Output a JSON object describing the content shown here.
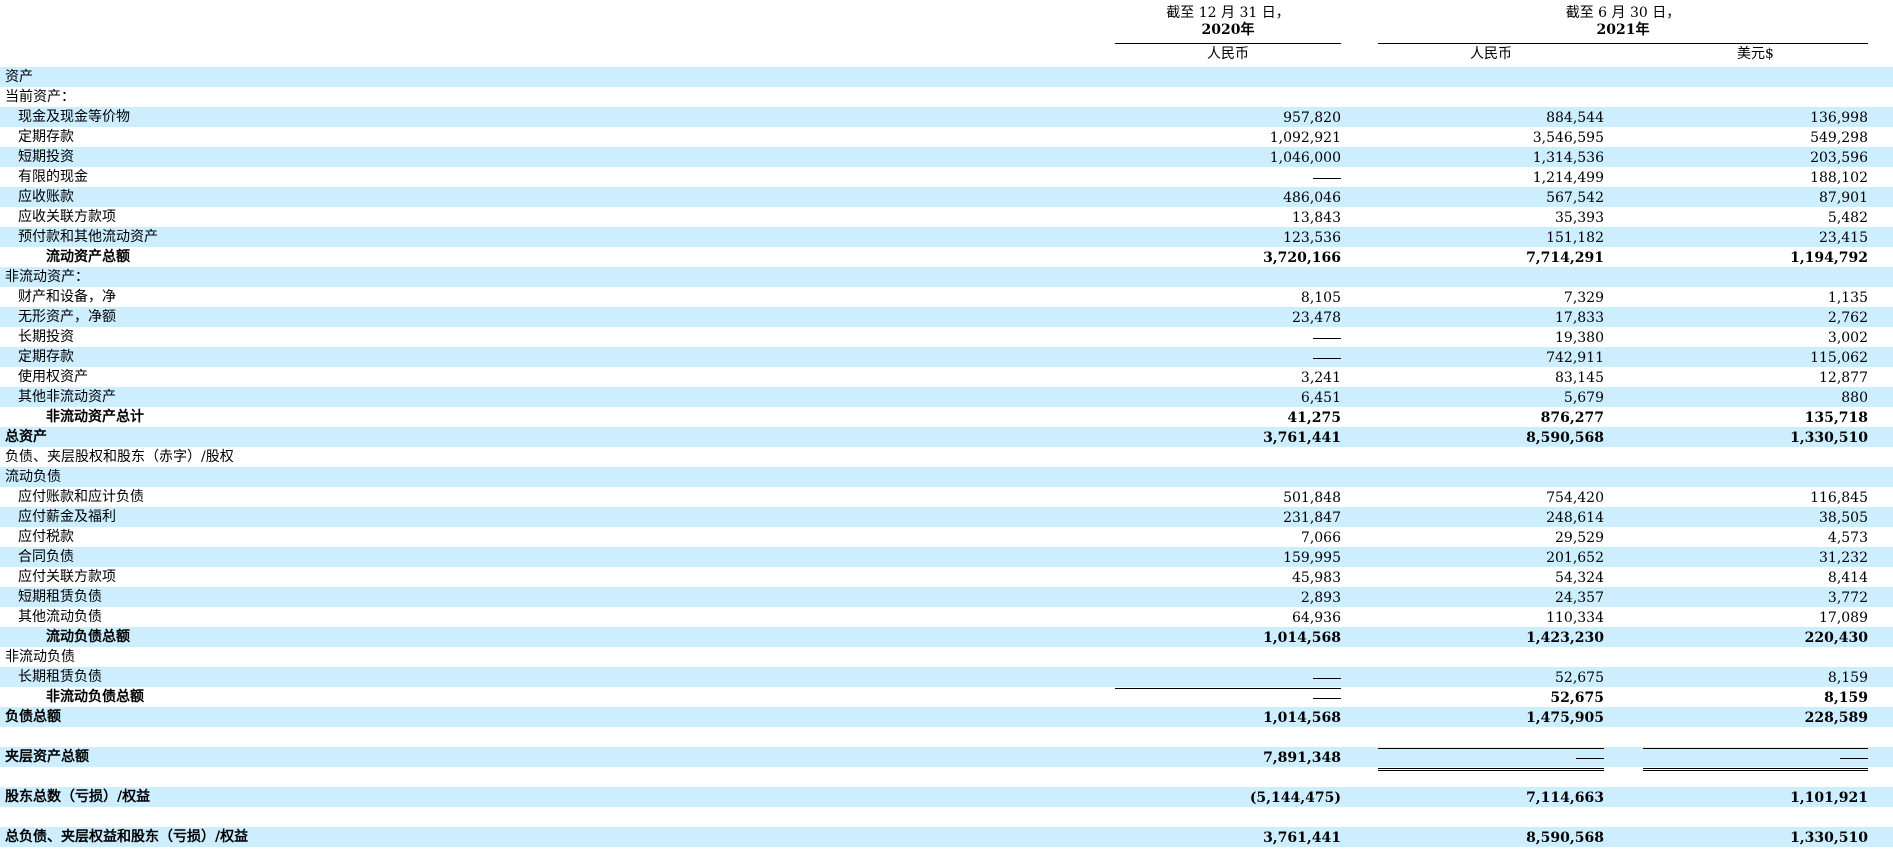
{
  "header": {
    "group1": {
      "line1": "截至 12 月 31 日，",
      "line2": "2020年",
      "currency": "人民币"
    },
    "group2": {
      "line1": "截至 6 月 30 日，",
      "line2": "2021年",
      "currency1": "人民币",
      "currency2": "美元$"
    }
  },
  "rows": [
    {
      "label": "资产",
      "indent": 0,
      "bold": false,
      "shade": true,
      "values": [
        "",
        "",
        ""
      ]
    },
    {
      "label": "当前资产：",
      "indent": 0,
      "bold": false,
      "shade": false,
      "values": [
        "",
        "",
        ""
      ]
    },
    {
      "label": "现金及现金等价物",
      "indent": 1,
      "bold": false,
      "shade": true,
      "values": [
        "957,820",
        "884,544",
        "136,998"
      ]
    },
    {
      "label": "定期存款",
      "indent": 1,
      "bold": false,
      "shade": false,
      "values": [
        "1,092,921",
        "3,546,595",
        "549,298"
      ]
    },
    {
      "label": "短期投资",
      "indent": 1,
      "bold": false,
      "shade": true,
      "values": [
        "1,046,000",
        "1,314,536",
        "203,596"
      ]
    },
    {
      "label": "有限的现金",
      "indent": 1,
      "bold": false,
      "shade": false,
      "values": [
        "—",
        "1,214,499",
        "188,102"
      ]
    },
    {
      "label": "应收账款",
      "indent": 1,
      "bold": false,
      "shade": true,
      "values": [
        "486,046",
        "567,542",
        "87,901"
      ]
    },
    {
      "label": "应收关联方款项",
      "indent": 1,
      "bold": false,
      "shade": false,
      "values": [
        "13,843",
        "35,393",
        "5,482"
      ]
    },
    {
      "label": "预付款和其他流动资产",
      "indent": 1,
      "bold": false,
      "shade": true,
      "values": [
        "123,536",
        "151,182",
        "23,415"
      ]
    },
    {
      "label": "流动资产总额",
      "indent": 2,
      "bold": true,
      "shade": false,
      "total": "single",
      "values": [
        "3,720,166",
        "7,714,291",
        "1,194,792"
      ]
    },
    {
      "label": "非流动资产：",
      "indent": 0,
      "bold": false,
      "shade": true,
      "values": [
        "",
        "",
        ""
      ]
    },
    {
      "label": "财产和设备，净",
      "indent": 1,
      "bold": false,
      "shade": false,
      "values": [
        "8,105",
        "7,329",
        "1,135"
      ]
    },
    {
      "label": "无形资产，净额",
      "indent": 1,
      "bold": false,
      "shade": true,
      "values": [
        "23,478",
        "17,833",
        "2,762"
      ]
    },
    {
      "label": "长期投资",
      "indent": 1,
      "bold": false,
      "shade": false,
      "values": [
        "—",
        "19,380",
        "3,002"
      ]
    },
    {
      "label": "定期存款",
      "indent": 1,
      "bold": false,
      "shade": true,
      "values": [
        "—",
        "742,911",
        "115,062"
      ]
    },
    {
      "label": "使用权资产",
      "indent": 1,
      "bold": false,
      "shade": false,
      "values": [
        "3,241",
        "83,145",
        "12,877"
      ]
    },
    {
      "label": "其他非流动资产",
      "indent": 1,
      "bold": false,
      "shade": true,
      "values": [
        "6,451",
        "5,679",
        "880"
      ]
    },
    {
      "label": "非流动资产总计",
      "indent": 2,
      "bold": true,
      "shade": false,
      "total": "single",
      "values": [
        "41,275",
        "876,277",
        "135,718"
      ]
    },
    {
      "label": "总资产",
      "indent": 0,
      "bold": true,
      "shade": true,
      "total": "double",
      "values": [
        "3,761,441",
        "8,590,568",
        "1,330,510"
      ]
    },
    {
      "label": "负债、夹层股权和股东（赤字）/股权",
      "indent": 0,
      "bold": false,
      "shade": false,
      "values": [
        "",
        "",
        ""
      ]
    },
    {
      "label": "流动负债",
      "indent": 0,
      "bold": false,
      "shade": true,
      "values": [
        "",
        "",
        ""
      ]
    },
    {
      "label": "应付账款和应计负债",
      "indent": 1,
      "bold": false,
      "shade": false,
      "values": [
        "501,848",
        "754,420",
        "116,845"
      ]
    },
    {
      "label": "应付薪金及福利",
      "indent": 1,
      "bold": false,
      "shade": true,
      "values": [
        "231,847",
        "248,614",
        "38,505"
      ]
    },
    {
      "label": "应付税款",
      "indent": 1,
      "bold": false,
      "shade": false,
      "values": [
        "7,066",
        "29,529",
        "4,573"
      ]
    },
    {
      "label": "合同负债",
      "indent": 1,
      "bold": false,
      "shade": true,
      "values": [
        "159,995",
        "201,652",
        "31,232"
      ]
    },
    {
      "label": "应付关联方款项",
      "indent": 1,
      "bold": false,
      "shade": false,
      "values": [
        "45,983",
        "54,324",
        "8,414"
      ]
    },
    {
      "label": "短期租赁负债",
      "indent": 1,
      "bold": false,
      "shade": true,
      "values": [
        "2,893",
        "24,357",
        "3,772"
      ]
    },
    {
      "label": "其他流动负债",
      "indent": 1,
      "bold": false,
      "shade": false,
      "values": [
        "64,936",
        "110,334",
        "17,089"
      ]
    },
    {
      "label": "流动负债总额",
      "indent": 2,
      "bold": true,
      "shade": true,
      "total": "single",
      "values": [
        "1,014,568",
        "1,423,230",
        "220,430"
      ]
    },
    {
      "label": "非流动负债",
      "indent": 0,
      "bold": false,
      "shade": false,
      "values": [
        "",
        "",
        ""
      ]
    },
    {
      "label": "长期租赁负债",
      "indent": 1,
      "bold": false,
      "shade": true,
      "values": [
        "—",
        "52,675",
        "8,159"
      ]
    },
    {
      "label": "非流动负债总额",
      "indent": 2,
      "bold": true,
      "shade": false,
      "total": "single",
      "values": [
        "—",
        "52,675",
        "8,159"
      ]
    },
    {
      "label": "负债总额",
      "indent": 0,
      "bold": true,
      "shade": true,
      "total": "double",
      "values": [
        "1,014,568",
        "1,475,905",
        "228,589"
      ]
    },
    {
      "spacer": true
    },
    {
      "label": "夹层资产总额",
      "indent": 0,
      "bold": true,
      "shade": true,
      "total": "double",
      "values": [
        "7,891,348",
        "—",
        "—"
      ]
    },
    {
      "spacer": true
    },
    {
      "label": "股东总数（亏损）/权益",
      "indent": 0,
      "bold": true,
      "shade": true,
      "total": "double",
      "values": [
        "(5,144,475)",
        "7,114,663",
        "1,101,921"
      ]
    },
    {
      "spacer": true
    },
    {
      "label": "总负债、夹层权益和股东（亏损）/权益",
      "indent": 0,
      "bold": true,
      "shade": true,
      "total": "double",
      "values": [
        "3,761,441",
        "8,590,568",
        "1,330,510"
      ]
    }
  ]
}
